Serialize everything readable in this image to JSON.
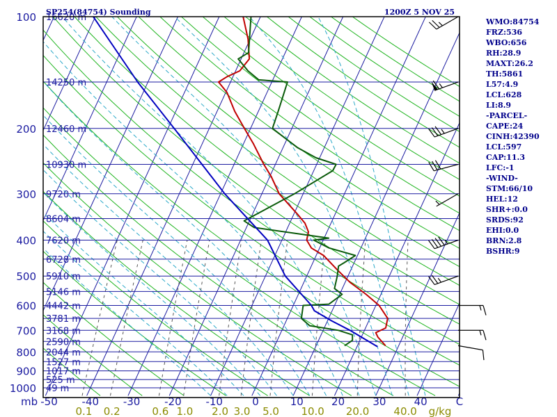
{
  "header": {
    "station": "SP254(84754) Sounding",
    "time": "1200Z  5 NOV 25"
  },
  "indices": [
    "WMO:84754",
    "FRZ:536",
    "WBO:656",
    "RH:28.9",
    "MAXT:26.2",
    "TH:5861",
    "L57:4.9",
    "LCL:628",
    "LI:8.9",
    "-PARCEL-",
    "CAPE:24",
    "CINH:42390",
    "LCL:597",
    "CAP:11.3",
    "LFC:-1",
    "-WIND-",
    "STM:66/10",
    "HEL:12",
    "SHR+:0.0",
    "SRDS:92",
    "EHI:0.0",
    "BRN:2.8",
    "BSHR:9"
  ],
  "colors": {
    "frame": "#000000",
    "isobar": "#1a1aa0",
    "isotherm": "#1a1aa0",
    "dry_adiabat": "#1eb41e",
    "moist_adiabat": "#2aa8c8",
    "mixing_ratio": "#555555",
    "temperature": "#c00000",
    "dewpoint": "#0a5a0a",
    "parcel": "#0000c0",
    "wind_barb": "#000000",
    "text": "#00008b",
    "mixing_labels": "#8b8b00"
  },
  "chart_data": {
    "type": "skew-t",
    "title": "SP254(84754) Sounding",
    "pressure_axis": {
      "unit": "mb",
      "scale": "log",
      "range": [
        1000,
        100
      ],
      "tick_labels": [
        "100",
        "200",
        "300",
        "400",
        "500",
        "600",
        "700",
        "800",
        "900",
        "1000"
      ]
    },
    "temperature_axis": {
      "unit": "C",
      "range": [
        -50,
        50
      ],
      "tick_values": [
        -50,
        -40,
        -30,
        -20,
        -10,
        0,
        10,
        20,
        30,
        40
      ],
      "tick_labels": [
        "-50",
        "-40",
        "-30",
        "-20",
        "-10",
        "0",
        "10",
        "20",
        "30",
        "40"
      ],
      "end_label": "C"
    },
    "mixing_ratio_axis": {
      "unit": "g/kg",
      "tick_labels": [
        "0.1",
        "0.2",
        "0.6",
        "1.0",
        "2.0",
        "3.0",
        "5.0",
        "10.0",
        "20.0",
        "40.0"
      ]
    },
    "height_labels": [
      {
        "p": 100,
        "label": "16620 m"
      },
      {
        "p": 150,
        "label": "14250 m"
      },
      {
        "p": 200,
        "label": "12460 m"
      },
      {
        "p": 250,
        "label": "10930 m"
      },
      {
        "p": 300,
        "label": "9720 m"
      },
      {
        "p": 350,
        "label": "8604 m"
      },
      {
        "p": 400,
        "label": "7620 m"
      },
      {
        "p": 450,
        "label": "6728 m"
      },
      {
        "p": 500,
        "label": "5910 m"
      },
      {
        "p": 550,
        "label": "5146 m"
      },
      {
        "p": 600,
        "label": "4442 m"
      },
      {
        "p": 650,
        "label": "3781 m"
      },
      {
        "p": 700,
        "label": "3168 m"
      },
      {
        "p": 750,
        "label": "2590 m"
      },
      {
        "p": 800,
        "label": "2044 m"
      },
      {
        "p": 850,
        "label": "1527 m"
      },
      {
        "p": 900,
        "label": "1017 m"
      },
      {
        "p": 950,
        "label": "525 m"
      },
      {
        "p": 1000,
        "label": "49 m"
      }
    ],
    "series": [
      {
        "name": "temperature",
        "points": [
          [
            770,
            26.8
          ],
          [
            730,
            24.0
          ],
          [
            710,
            23.0
          ],
          [
            690,
            24.9
          ],
          [
            650,
            24.3
          ],
          [
            600,
            20.8
          ],
          [
            560,
            16.4
          ],
          [
            520,
            11.2
          ],
          [
            480,
            6.6
          ],
          [
            440,
            1.8
          ],
          [
            420,
            -2.0
          ],
          [
            400,
            -4.0
          ],
          [
            380,
            -4.5
          ],
          [
            360,
            -6.3
          ],
          [
            340,
            -9.2
          ],
          [
            300,
            -15.8
          ],
          [
            270,
            -19.6
          ],
          [
            250,
            -22.8
          ],
          [
            220,
            -27.6
          ],
          [
            200,
            -31.5
          ],
          [
            180,
            -35.7
          ],
          [
            160,
            -39.7
          ],
          [
            150,
            -42.9
          ],
          [
            145,
            -41.4
          ],
          [
            140,
            -39.0
          ],
          [
            130,
            -38.0
          ],
          [
            115,
            -40.5
          ],
          [
            100,
            -44.2
          ]
        ]
      },
      {
        "name": "dewpoint",
        "points": [
          [
            770,
            16.9
          ],
          [
            745,
            18.2
          ],
          [
            720,
            17.6
          ],
          [
            700,
            13.7
          ],
          [
            680,
            6.2
          ],
          [
            650,
            3.4
          ],
          [
            600,
            2.4
          ],
          [
            595,
            8.5
          ],
          [
            560,
            10.6
          ],
          [
            540,
            8.1
          ],
          [
            500,
            7.4
          ],
          [
            470,
            6.6
          ],
          [
            460,
            7.6
          ],
          [
            440,
            9.5
          ],
          [
            420,
            2.3
          ],
          [
            400,
            -2.3
          ],
          [
            395,
            1.1
          ],
          [
            370,
            -18.1
          ],
          [
            355,
            -21.3
          ],
          [
            300,
            -12.1
          ],
          [
            260,
            -5.4
          ],
          [
            250,
            -5.3
          ],
          [
            240,
            -10.9
          ],
          [
            225,
            -16.6
          ],
          [
            200,
            -24.7
          ],
          [
            180,
            -25.2
          ],
          [
            150,
            -26.2
          ],
          [
            148,
            -33.4
          ],
          [
            140,
            -37.0
          ],
          [
            130,
            -40.7
          ],
          [
            125,
            -38.9
          ],
          [
            100,
            -42.3
          ]
        ]
      },
      {
        "name": "parcel",
        "points": [
          [
            775,
            25.0
          ],
          [
            700,
            16.5
          ],
          [
            660,
            11.0
          ],
          [
            620,
            5.7
          ],
          [
            600,
            4.4
          ],
          [
            500,
            -5.2
          ],
          [
            400,
            -13.5
          ],
          [
            300,
            -29.0
          ],
          [
            200,
            -48.5
          ],
          [
            150,
            -62.5
          ],
          [
            100,
            -80.5
          ]
        ]
      }
    ],
    "wind_barbs": [
      {
        "p": 100,
        "dir": 240,
        "spd": 25
      },
      {
        "p": 150,
        "dir": 250,
        "spd": 65
      },
      {
        "p": 200,
        "dir": 250,
        "spd": 35
      },
      {
        "p": 250,
        "dir": 255,
        "spd": 30
      },
      {
        "p": 300,
        "dir": 240,
        "spd": 5
      },
      {
        "p": 400,
        "dir": 250,
        "spd": 45
      },
      {
        "p": 500,
        "dir": 250,
        "spd": 25
      },
      {
        "p": 600,
        "dir": 90,
        "spd": 15
      },
      {
        "p": 700,
        "dir": 90,
        "spd": 15
      },
      {
        "p": 770,
        "dir": 100,
        "spd": 10
      }
    ]
  }
}
